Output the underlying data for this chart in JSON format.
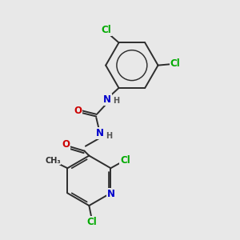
{
  "bg_color": "#e8e8e8",
  "bond_color": "#2d2d2d",
  "atom_colors": {
    "C": "#2d2d2d",
    "N": "#0000cc",
    "O": "#cc0000",
    "Cl": "#00aa00",
    "H": "#555555"
  },
  "font_size": 8.5,
  "bond_width": 1.4
}
